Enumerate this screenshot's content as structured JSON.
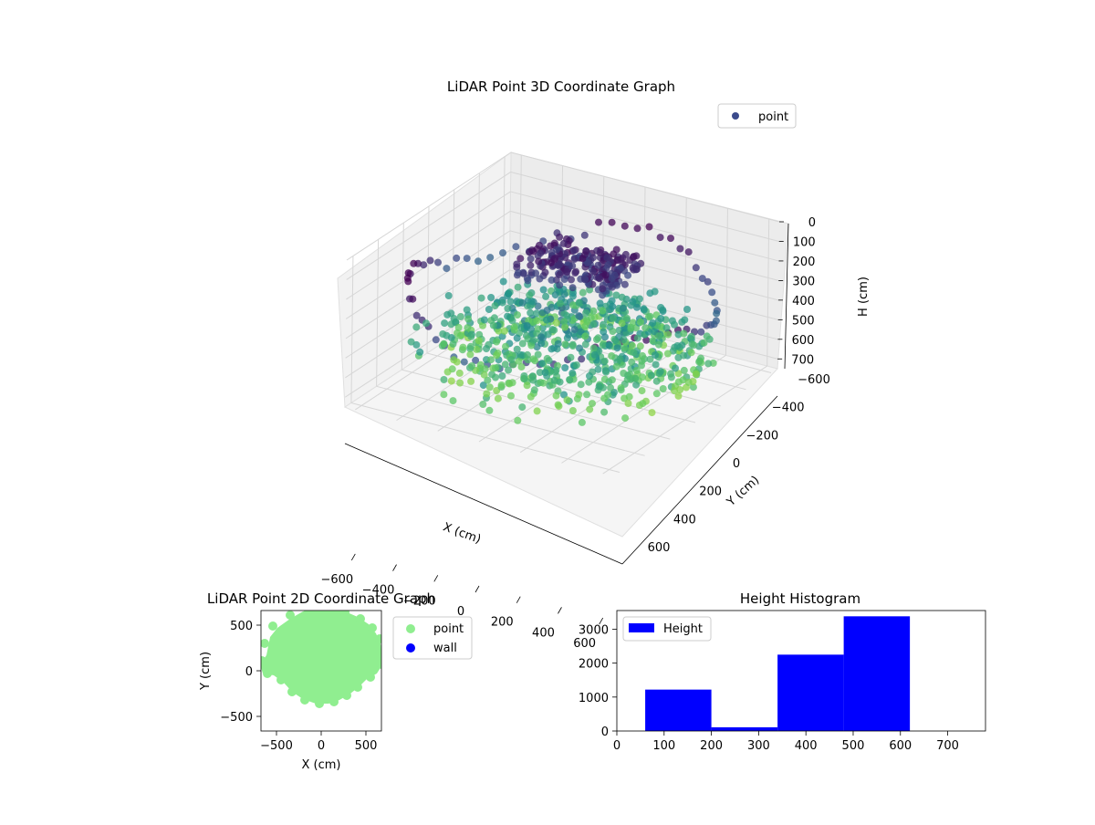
{
  "colors": {
    "viridis_dark": "#440154",
    "viridis_mid": "#31688e",
    "viridis_green": "#35b779",
    "viridis_light": "#b5de2b",
    "point_2d": "#90ee90",
    "wall_2d": "#0000ff",
    "hist_bar": "#0000ff",
    "legend_point_3d": "#3b4b8c"
  },
  "chart_data": [
    {
      "type": "scatter",
      "subtype": "3d",
      "title": "LiDAR Point 3D Coordinate Graph",
      "xlabel": "X (cm)",
      "ylabel": "Y (cm)",
      "zlabel": "H (cm)",
      "xlim": [
        -650,
        650
      ],
      "ylim": [
        -650,
        650
      ],
      "zlim": [
        750,
        0
      ],
      "x_ticks": [
        "−600",
        "−400",
        "−200",
        "0",
        "200",
        "400",
        "600"
      ],
      "y_ticks": [
        "−600",
        "−400",
        "−200",
        "0",
        "200",
        "400",
        "600"
      ],
      "z_ticks": [
        "0",
        "100",
        "200",
        "300",
        "400",
        "500",
        "600",
        "700"
      ],
      "legend": [
        "point"
      ],
      "legend_position": "upper-right",
      "colormap": "viridis",
      "grid": true
    },
    {
      "type": "scatter",
      "title": "LiDAR Point 2D Coordinate Graph",
      "xlabel": "X (cm)",
      "ylabel": "Y (cm)",
      "xlim": [
        -650,
        650
      ],
      "ylim": [
        -650,
        650
      ],
      "x_ticks": [
        "−500",
        "0",
        "500"
      ],
      "y_ticks": [
        "500",
        "0",
        "−500"
      ],
      "series": [
        {
          "name": "point",
          "region": "filled blob, x approx −650 to 650, y approx −350 to 650"
        },
        {
          "name": "wall",
          "points": []
        }
      ],
      "legend_position": "outside-right"
    },
    {
      "type": "bar",
      "subtype": "histogram",
      "title": "Height Histogram",
      "xlim": [
        0,
        780
      ],
      "ylim": [
        0,
        3550
      ],
      "x_ticks": [
        "0",
        "100",
        "200",
        "300",
        "400",
        "500",
        "600",
        "700"
      ],
      "y_ticks": [
        "0",
        "1000",
        "2000",
        "3000"
      ],
      "bins": [
        {
          "start": 60,
          "end": 200,
          "count": 1220
        },
        {
          "start": 200,
          "end": 340,
          "count": 110
        },
        {
          "start": 340,
          "end": 480,
          "count": 2250
        },
        {
          "start": 480,
          "end": 620,
          "count": 3380
        }
      ],
      "series": [
        {
          "name": "Height"
        }
      ],
      "legend_position": "upper-left"
    }
  ]
}
